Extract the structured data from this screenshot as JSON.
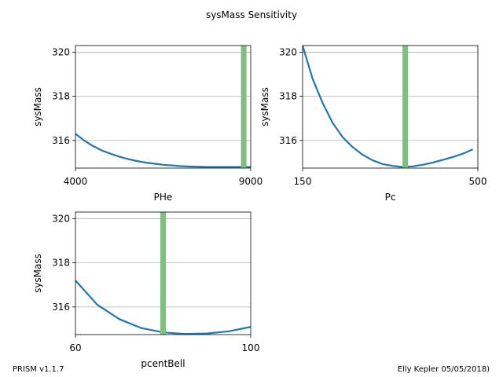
{
  "chart_data": {
    "suptitle": "sysMass Sensitivity",
    "subplots": [
      {
        "type": "line",
        "xlabel": "PHe",
        "ylabel": "sysMass",
        "xlim": [
          4000,
          9000
        ],
        "ylim": [
          314.75,
          320.3
        ],
        "xticks": [
          4000,
          9000
        ],
        "yticks": [
          316,
          318,
          320
        ],
        "grid_y": true,
        "series": [
          {
            "color": "#1f77b4",
            "x": [
              4000,
              4250,
              4500,
              4750,
              5000,
              5250,
              5500,
              5750,
              6000,
              6250,
              6500,
              6750,
              7000,
              7250,
              7500,
              7750,
              8000,
              8250,
              8500,
              8750,
              9000
            ],
            "y": [
              316.3,
              316.0,
              315.75,
              315.55,
              315.4,
              315.27,
              315.16,
              315.07,
              315.0,
              314.95,
              314.9,
              314.87,
              314.84,
              314.82,
              314.81,
              314.8,
              314.8,
              314.8,
              314.8,
              314.8,
              314.8
            ]
          }
        ],
        "marker": {
          "x": 8800,
          "color": "#81bf81"
        }
      },
      {
        "type": "line",
        "xlabel": "Pc",
        "ylabel": "sysMass",
        "xlim": [
          150,
          500
        ],
        "ylim": [
          314.75,
          320.3
        ],
        "xticks": [
          150,
          500
        ],
        "yticks": [
          316,
          318,
          320
        ],
        "grid_y": true,
        "series": [
          {
            "color": "#1f77b4",
            "x": [
              150,
              170,
              190,
              210,
              230,
              250,
              270,
              290,
              310,
              330,
              350,
              370,
              390,
              410,
              430,
              450,
              470,
              490
            ],
            "y": [
              320.3,
              318.8,
              317.7,
              316.8,
              316.15,
              315.7,
              315.35,
              315.1,
              314.93,
              314.85,
              314.8,
              314.83,
              314.9,
              315.0,
              315.12,
              315.25,
              315.4,
              315.6
            ]
          }
        ],
        "marker": {
          "x": 355,
          "color": "#81bf81"
        }
      },
      {
        "type": "line",
        "xlabel": "pcentBell",
        "ylabel": "sysMass",
        "xlim": [
          60,
          100
        ],
        "ylim": [
          314.75,
          320.3
        ],
        "xticks": [
          60,
          100
        ],
        "yticks": [
          316,
          318,
          320
        ],
        "grid_y": true,
        "series": [
          {
            "color": "#1f77b4",
            "x": [
              60,
              65,
              70,
              75,
              80,
              85,
              90,
              95,
              100
            ],
            "y": [
              317.2,
              316.1,
              315.45,
              315.05,
              314.85,
              314.78,
              314.8,
              314.9,
              315.1
            ]
          }
        ],
        "marker": {
          "x": 80,
          "color": "#81bf81"
        }
      }
    ]
  },
  "footer": {
    "left": "PRISM v1.1.7",
    "right": "Elly Kepler 05/05/2018)"
  }
}
